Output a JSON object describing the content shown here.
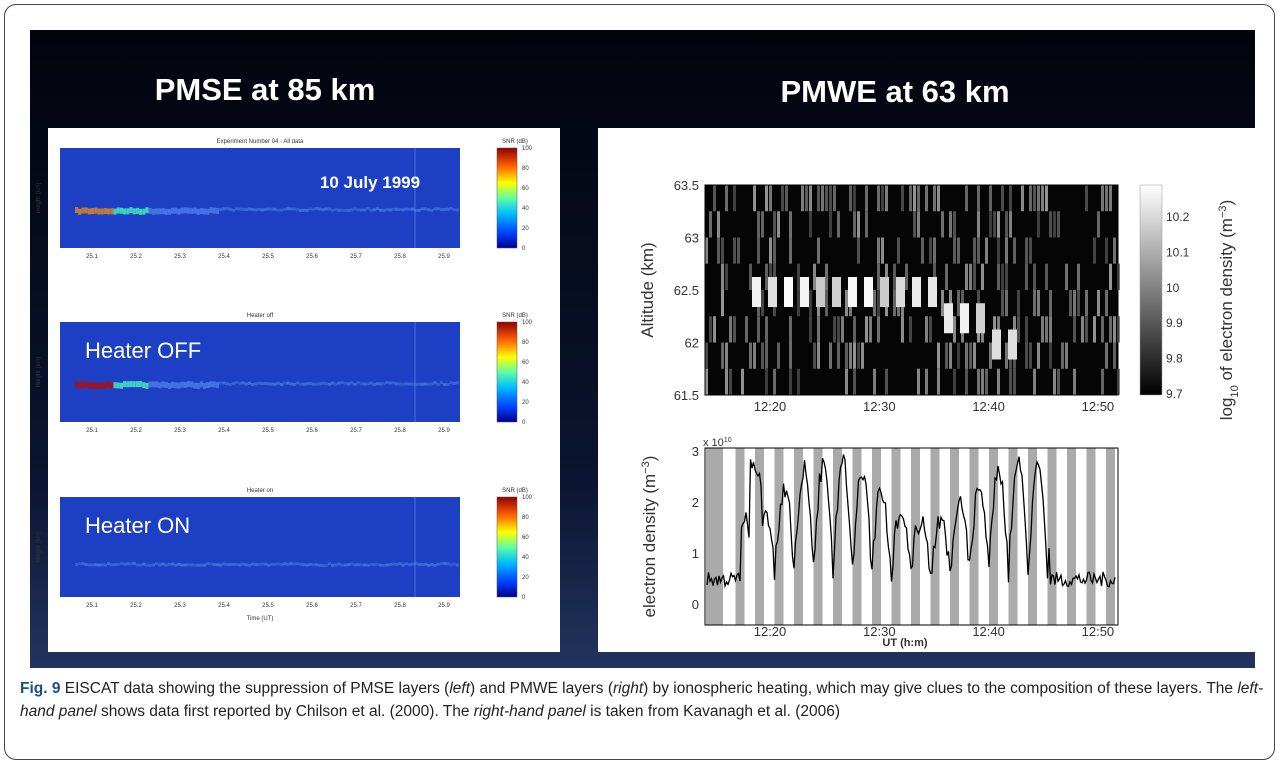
{
  "figure": {
    "left": {
      "title": "PMSE at 85 km",
      "panels": [
        {
          "title": "Experiment Number 04 · All data",
          "annotation": "10 July 1999"
        },
        {
          "title": "Heater off",
          "annotation": "Heater OFF"
        },
        {
          "title": "Heater on",
          "annotation": "Heater ON"
        }
      ],
      "y_label": "Height (km)",
      "x_label": "Time (UT)",
      "x_ticks": [
        "25.1",
        "25.2",
        "25.3",
        "25.4",
        "25.5",
        "25.6",
        "25.7",
        "25.8",
        "25.9"
      ],
      "colorbar_label": "SNR (dB)",
      "colorbar_ticks": [
        "0",
        "20",
        "40",
        "60",
        "80",
        "100"
      ]
    },
    "right": {
      "title": "PMWE at 63 km",
      "top": {
        "y_label": "Altitude (km)",
        "y_ticks": [
          "63.5",
          "63",
          "62.5",
          "62",
          "61.5"
        ],
        "x_ticks": [
          "12:20",
          "12:30",
          "12:40",
          "12:50"
        ],
        "colorbar_label": [
          "log",
          "10",
          " of electron density (m",
          "−3",
          ")"
        ],
        "colorbar_ticks": [
          "10.2",
          "10.1",
          "10",
          "9.9",
          "9.8",
          "9.7"
        ]
      },
      "bottom": {
        "y_label": [
          "electron density (m",
          "−3",
          ")"
        ],
        "y_ticks": [
          "3",
          "2",
          "1",
          "0"
        ],
        "multiplier": [
          "x 10",
          "10"
        ],
        "x_ticks": [
          "12:20",
          "12:30",
          "12:40",
          "12:50"
        ],
        "x_label": "UT (h:m)"
      }
    }
  },
  "caption": {
    "label": "Fig. 9",
    "parts": [
      " EISCAT data showing the suppression of PMSE layers (",
      "left",
      ") and PMWE layers (",
      "right",
      ") by ionospheric heating, which may give clues to the composition of these layers. The ",
      "left-hand panel",
      " shows data first reported by Chilson et al. (2000). The ",
      "right-hand panel",
      " is taken from Kavanagh et al. (2006)"
    ]
  }
}
